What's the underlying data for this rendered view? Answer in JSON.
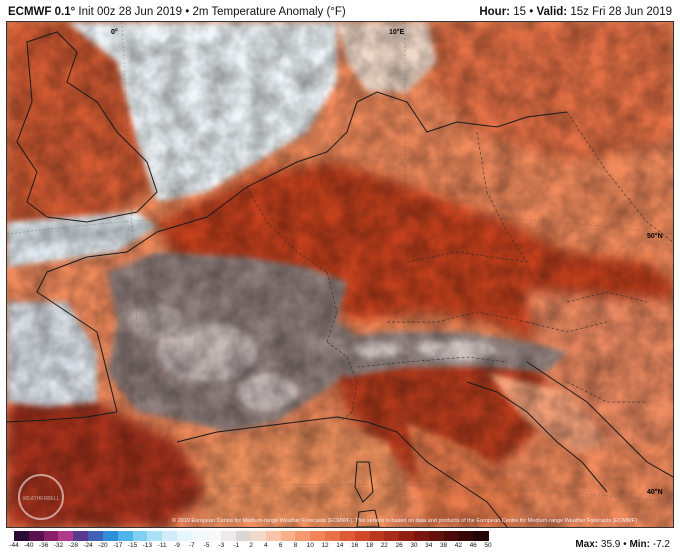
{
  "header": {
    "model": "ECMWF 0.1°",
    "init": "Init 00z 28 Jun 2019",
    "sep": "•",
    "field": "2m Temperature Anomaly (°F)",
    "hour_label": "Hour:",
    "hour_value": "15",
    "valid_label": "Valid:",
    "valid_value": "15z Fri 28 Jun 2019"
  },
  "map": {
    "labels": {
      "lon_0": "0°",
      "lon_10e": "10°E",
      "lat_50n": "50°N",
      "lat_40n": "40°N"
    },
    "watermark": "WEATHERBELL",
    "copyright": "© 2019 European Centre for Medium-range Weather Forecasts (ECMWF). This service is based on data and products of the European Centre for Medium-range Weather Forecasts (ECMWF)"
  },
  "legend": {
    "ticks": [
      "-44",
      "-40",
      "-36",
      "-32",
      "-28",
      "-24",
      "-20",
      "-17",
      "-15",
      "-13",
      "-11",
      "-9",
      "-7",
      "-5",
      "-3",
      "-1",
      "2",
      "4",
      "6",
      "8",
      "10",
      "12",
      "14",
      "16",
      "18",
      "22",
      "26",
      "30",
      "34",
      "38",
      "42",
      "46",
      "50"
    ],
    "colors": [
      "#2a0b33",
      "#5a0f4f",
      "#8a1f6c",
      "#b23a8a",
      "#5a3a8e",
      "#3f62b7",
      "#2f8fd6",
      "#4cb4ea",
      "#7fd0f3",
      "#a9e1f7",
      "#cfeefa",
      "#e7f6fb",
      "#f4f9fb",
      "#f8f8f8",
      "#eceaea",
      "#dcd6d6",
      "#f3d9c8",
      "#f8c6a7",
      "#f7b18a",
      "#f59a70",
      "#f18558",
      "#ea7045",
      "#de5b35",
      "#cf4828",
      "#bb3820",
      "#a82c1a",
      "#921f14",
      "#7a160f",
      "#62100b",
      "#4b0b08",
      "#360705",
      "#240404"
    ]
  },
  "stats": {
    "max_label": "Max:",
    "max_value": "35.9",
    "sep": "•",
    "min_label": "Min:",
    "min_value": "-7.2"
  }
}
